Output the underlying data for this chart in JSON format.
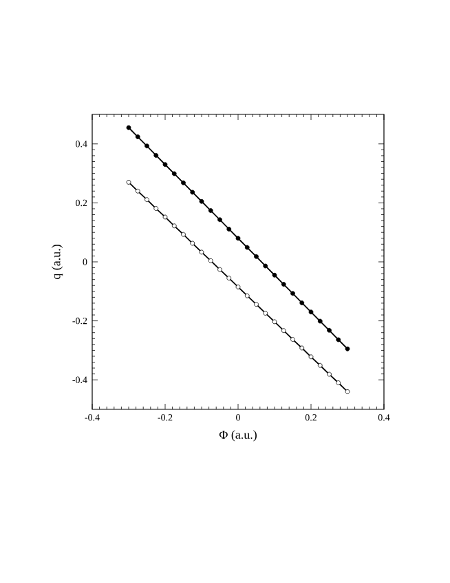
{
  "chart_data": {
    "type": "line",
    "xlabel": "Φ  (a.u.)",
    "ylabel": "q  (a.u.)",
    "xlim": [
      -0.4,
      0.4
    ],
    "ylim": [
      -0.5,
      0.5
    ],
    "xticks": [
      -0.4,
      -0.2,
      0,
      0.2,
      0.4
    ],
    "yticks": [
      -0.4,
      -0.2,
      0,
      0.2,
      0.4
    ],
    "grid": false,
    "marker": "circle",
    "line_style": "solid",
    "x": [
      -0.3,
      -0.275,
      -0.25,
      -0.225,
      -0.2,
      -0.175,
      -0.15,
      -0.125,
      -0.1,
      -0.075,
      -0.05,
      -0.025,
      0,
      0.025,
      0.05,
      0.075,
      0.1,
      0.125,
      0.15,
      0.175,
      0.2,
      0.225,
      0.25,
      0.275,
      0.3
    ],
    "series": [
      {
        "color": "#000000",
        "values": [
          0.455,
          0.424,
          0.393,
          0.361,
          0.33,
          0.299,
          0.268,
          0.236,
          0.205,
          0.174,
          0.143,
          0.111,
          0.08,
          0.049,
          0.018,
          -0.014,
          -0.045,
          -0.076,
          -0.107,
          -0.139,
          -0.17,
          -0.201,
          -0.232,
          -0.264,
          -0.295
        ]
      },
      {
        "color": "#ffffff",
        "values": [
          0.27,
          0.24,
          0.211,
          0.181,
          0.152,
          0.122,
          0.093,
          0.063,
          0.033,
          0.004,
          -0.026,
          -0.055,
          -0.085,
          -0.115,
          -0.144,
          -0.174,
          -0.203,
          -0.233,
          -0.263,
          -0.292,
          -0.322,
          -0.351,
          -0.381,
          -0.41,
          -0.44
        ]
      }
    ]
  }
}
